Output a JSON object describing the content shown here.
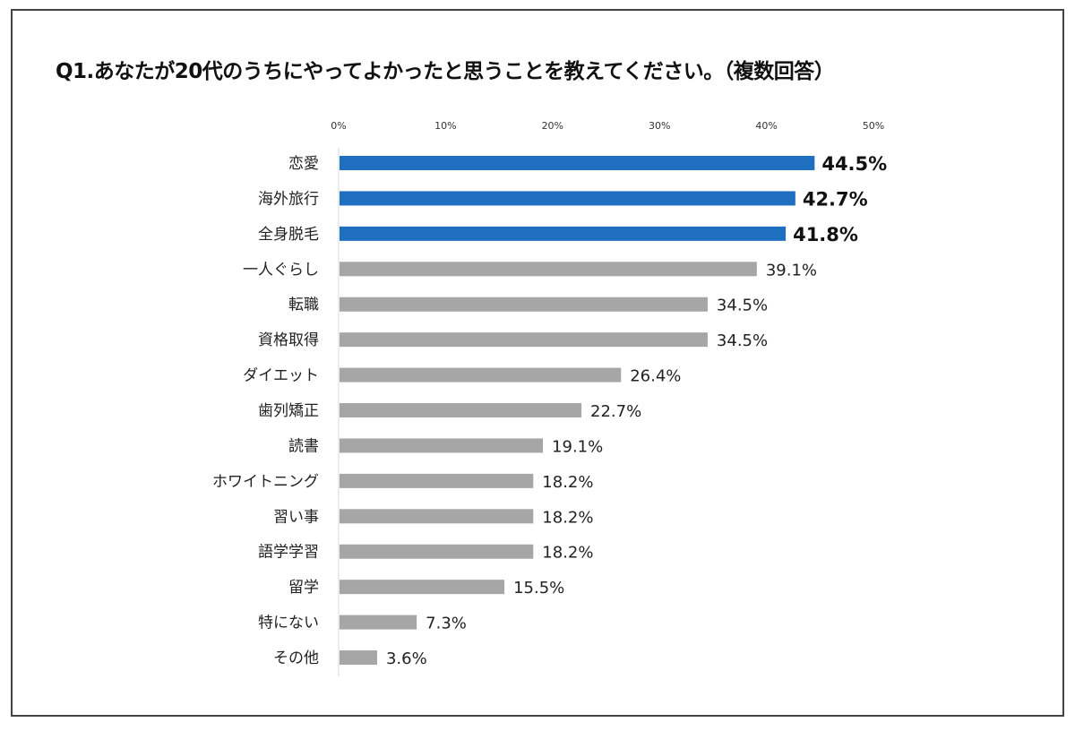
{
  "chart_data": {
    "type": "bar",
    "orientation": "horizontal",
    "title": "Q1.あなたが20代のうちにやってよかったと思うことを教えてください。（複数回答）",
    "categories": [
      "恋愛",
      "海外旅行",
      "全身脱毛",
      "一人ぐらし",
      "転職",
      "資格取得",
      "ダイエット",
      "歯列矯正",
      "読書",
      "ホワイトニング",
      "習い事",
      "語学学習",
      "留学",
      "特にない",
      "その他"
    ],
    "values": [
      44.5,
      42.7,
      41.8,
      39.1,
      34.5,
      34.5,
      26.4,
      22.7,
      19.1,
      18.2,
      18.2,
      18.2,
      15.5,
      7.3,
      3.6
    ],
    "value_labels": [
      "44.5%",
      "42.7%",
      "41.8%",
      "39.1%",
      "34.5%",
      "34.5%",
      "26.4%",
      "22.7%",
      "19.1%",
      "18.2%",
      "18.2%",
      "18.2%",
      "15.5%",
      "7.3%",
      "3.6%"
    ],
    "highlighted_count": 3,
    "xlim": [
      0,
      50
    ],
    "x_ticks": [
      "0%",
      "10%",
      "20%",
      "30%",
      "40%",
      "50%"
    ],
    "x_tick_position": "top",
    "grid": false,
    "colors": {
      "highlight": "#1f6fc0",
      "default": "#a6a6a6",
      "axis": "#d9d9d9"
    }
  }
}
